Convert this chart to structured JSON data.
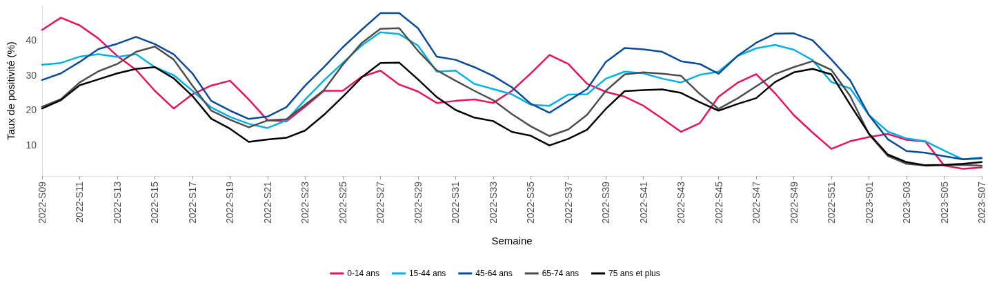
{
  "chart_data": {
    "type": "line",
    "xlabel": "Semaine",
    "ylabel": "Taux de positivité (%)",
    "categories": [
      "2022-S09",
      null,
      "2022-S11",
      null,
      "2022-S13",
      null,
      "2022-S15",
      null,
      "2022-S17",
      null,
      "2022-S19",
      null,
      "2022-S21",
      null,
      "2022-S23",
      null,
      "2022-S25",
      null,
      "2022-S27",
      null,
      "2022-S29",
      null,
      "2022-S31",
      null,
      "2022-S33",
      null,
      "2022-S35",
      null,
      "2022-S37",
      null,
      "2022-S39",
      null,
      "2022-S41",
      null,
      "2022-S43",
      null,
      "2022-S45",
      null,
      "2022-S47",
      null,
      "2022-S49",
      null,
      "2022-S51",
      null,
      "2023-S01",
      null,
      "2023-S03",
      null,
      "2023-S05",
      null,
      "2023-S07"
    ],
    "series": [
      {
        "name": "0-14 ans",
        "color": "#e8125c",
        "values": [
          43,
          46.5,
          44.3,
          40.5,
          35.5,
          31.5,
          25.5,
          20.4,
          24.5,
          27,
          28.4,
          23,
          17,
          16.7,
          21,
          25.5,
          25.5,
          29.5,
          31.3,
          27.3,
          25.3,
          22,
          22.6,
          23,
          22,
          25.5,
          30.5,
          35.8,
          33.2,
          27.5,
          25.2,
          23.8,
          21.2,
          17.5,
          13.7,
          16.2,
          23.8,
          27.8,
          30.3,
          24.8,
          18.5,
          13.5,
          8.8,
          11,
          12.2,
          13.1,
          11.4,
          10.9,
          4,
          3.1,
          3.5
        ]
      },
      {
        "name": "15-44 ans",
        "color": "#00b0e6",
        "values": [
          33,
          33.5,
          35.3,
          36,
          35.2,
          36,
          32.3,
          30,
          25.5,
          20.7,
          18,
          16,
          14.8,
          17,
          23,
          28.5,
          33.5,
          38.5,
          42.3,
          41.8,
          38.5,
          31,
          31.3,
          27.5,
          26,
          24.5,
          21.5,
          21.2,
          24.4,
          24.5,
          29,
          31,
          30.5,
          29,
          27.9,
          30.1,
          31,
          35.5,
          37.7,
          38.7,
          37.3,
          34.3,
          28,
          26.2,
          18.5,
          13.8,
          11.8,
          11,
          8.3,
          5.8,
          6.3
        ]
      },
      {
        "name": "45-64 ans",
        "color": "#0a4a9b",
        "values": [
          28.6,
          30.5,
          33.8,
          37.5,
          39,
          41,
          38.9,
          36,
          30.5,
          22.6,
          19.8,
          17.4,
          18.1,
          20.8,
          27,
          32.3,
          38,
          43,
          47.8,
          47.8,
          43.5,
          35.3,
          34.4,
          32.3,
          29.8,
          26.5,
          21.8,
          19.2,
          22.6,
          26,
          33.8,
          37.8,
          37.4,
          36.7,
          34,
          33.2,
          30.4,
          35.5,
          39.3,
          41.9,
          42,
          40,
          34.5,
          28.5,
          18.5,
          11.6,
          8.2,
          7.7,
          6.7,
          5.8,
          6.1
        ]
      },
      {
        "name": "65-74 ans",
        "color": "#4d4d4d",
        "values": [
          20.9,
          23.1,
          27.9,
          31.1,
          33.2,
          36.7,
          38.2,
          34.5,
          27,
          19.8,
          17.2,
          15,
          17,
          17.3,
          21.5,
          25.7,
          33,
          39.2,
          43.3,
          43.5,
          37,
          31.4,
          28.4,
          25.5,
          22.8,
          18.8,
          15.3,
          12.5,
          14.4,
          18.6,
          25.5,
          30.2,
          30.8,
          30.4,
          29.8,
          24.6,
          20.3,
          23.3,
          26.8,
          30.3,
          32.3,
          34,
          31.5,
          24,
          13,
          6.8,
          4.5,
          4,
          4.1,
          4.2,
          4
        ]
      },
      {
        "name": "75 ans et plus",
        "color": "#000000",
        "values": [
          20.4,
          22.8,
          27.1,
          28.8,
          30.5,
          31.8,
          32.3,
          29.1,
          24,
          17.5,
          14.6,
          10.8,
          11.5,
          12,
          14.1,
          18.6,
          23.8,
          29.3,
          33.5,
          33.6,
          28.8,
          23.7,
          20,
          17.8,
          16.8,
          13.7,
          12.6,
          9.8,
          11.7,
          14.3,
          20.3,
          25.4,
          25.7,
          25.9,
          24.9,
          22.2,
          19.8,
          21.7,
          23.4,
          28,
          30.8,
          31.8,
          30.2,
          21.5,
          13.2,
          7.2,
          5,
          4.1,
          4.2,
          4.5,
          5
        ]
      }
    ],
    "ylim": [
      1,
      50
    ],
    "yticks": [
      10,
      20,
      30,
      40
    ],
    "grid": false,
    "legend": "bottom",
    "marker": "none",
    "line_style": "solid"
  }
}
